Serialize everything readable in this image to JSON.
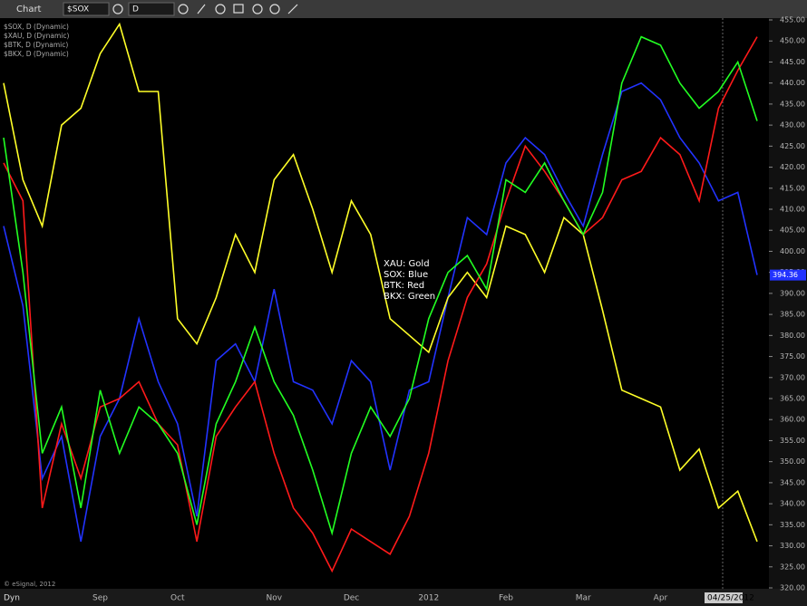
{
  "toolbar": {
    "title": "Chart",
    "symbol": "$SOX",
    "interval": "D"
  },
  "chart_data": {
    "type": "line",
    "categories": [
      null,
      null,
      null,
      null,
      null,
      "Sep",
      null,
      null,
      null,
      "Oct",
      null,
      null,
      null,
      null,
      "Nov",
      null,
      null,
      null,
      "Dec",
      null,
      null,
      null,
      "2012",
      null,
      null,
      null,
      "Feb",
      null,
      null,
      null,
      "Mar",
      null,
      null,
      null,
      "Apr",
      null,
      null,
      null,
      null,
      null
    ],
    "series": [
      {
        "name": "$SOX, D (Dynamic)",
        "color": "#2233ff",
        "values": [
          406,
          387,
          346,
          356,
          331,
          356,
          365,
          384,
          369,
          359,
          337,
          374,
          378,
          369,
          391,
          369,
          367,
          359,
          374,
          369,
          348,
          367,
          369,
          389,
          408,
          404,
          421,
          427,
          423,
          414,
          406,
          423,
          438,
          440,
          436,
          427,
          421,
          412,
          414,
          394.36
        ]
      },
      {
        "name": "$XAU, D (Dynamic)",
        "color": "#ffff28",
        "values": [
          440,
          417,
          406,
          430,
          434,
          447,
          454,
          438,
          438,
          384,
          378,
          389,
          404,
          395,
          417,
          423,
          410,
          395,
          412,
          404,
          384,
          380,
          376,
          389,
          395,
          389,
          406,
          404,
          395,
          408,
          404,
          386,
          367,
          365,
          363,
          348,
          353,
          339,
          343,
          331
        ]
      },
      {
        "name": "$BTK, D (Dynamic)",
        "color": "#ff1a1a",
        "values": [
          421,
          412,
          339,
          359,
          346,
          363,
          365,
          369,
          359,
          354,
          331,
          356,
          363,
          369,
          352,
          339,
          333,
          324,
          334,
          331,
          328,
          337,
          352,
          374,
          389,
          397,
          412,
          425,
          419,
          412,
          404,
          408,
          417,
          419,
          427,
          423,
          412,
          434,
          443,
          451
        ]
      },
      {
        "name": "$BKX, D (Dynamic)",
        "color": "#22ff22",
        "values": [
          427,
          395,
          352,
          363,
          339,
          367,
          352,
          363,
          359,
          352,
          335,
          359,
          369,
          382,
          369,
          361,
          348,
          333,
          352,
          363,
          356,
          365,
          384,
          395,
          399,
          391,
          417,
          414,
          421,
          412,
          404,
          414,
          440,
          451,
          449,
          440,
          434,
          438,
          445,
          431
        ]
      }
    ],
    "annotations": [
      "XAU:  Gold",
      "SOX:  Blue",
      "BTK:  Red",
      "BKX:  Green"
    ],
    "last_price": 394.36,
    "last_price_label": "394.36",
    "cursor_date": "04/25/2012",
    "copyright": "© eSignal, 2012",
    "mode": "Dyn",
    "ylim": [
      320,
      455
    ],
    "yticks": [
      {
        "value": 320,
        "label": "320.00"
      },
      {
        "value": 325,
        "label": "325.00"
      },
      {
        "value": 330,
        "label": "330.00"
      },
      {
        "value": 335,
        "label": "335.00"
      },
      {
        "value": 340,
        "label": "340.00"
      },
      {
        "value": 345,
        "label": "345.00"
      },
      {
        "value": 350,
        "label": "350.00"
      },
      {
        "value": 355,
        "label": "355.00"
      },
      {
        "value": 360,
        "label": "360.00"
      },
      {
        "value": 365,
        "label": "365.00"
      },
      {
        "value": 370,
        "label": "370.00"
      },
      {
        "value": 375,
        "label": "375.00"
      },
      {
        "value": 380,
        "label": "380.00"
      },
      {
        "value": 385,
        "label": "385.00"
      },
      {
        "value": 390,
        "label": "390.00"
      },
      {
        "value": 395,
        "label": "395.00"
      },
      {
        "value": 400,
        "label": "400.00"
      },
      {
        "value": 405,
        "label": "405.00"
      },
      {
        "value": 410,
        "label": "410.00"
      },
      {
        "value": 415,
        "label": "415.00"
      },
      {
        "value": 420,
        "label": "420.00"
      },
      {
        "value": 425,
        "label": "425.00"
      },
      {
        "value": 430,
        "label": "430.00"
      },
      {
        "value": 435,
        "label": "435.00"
      },
      {
        "value": 440,
        "label": "440.00"
      },
      {
        "value": 445,
        "label": "445.00"
      },
      {
        "value": 450,
        "label": "450.00"
      },
      {
        "value": 455,
        "label": "455.00"
      }
    ],
    "grid": false
  }
}
